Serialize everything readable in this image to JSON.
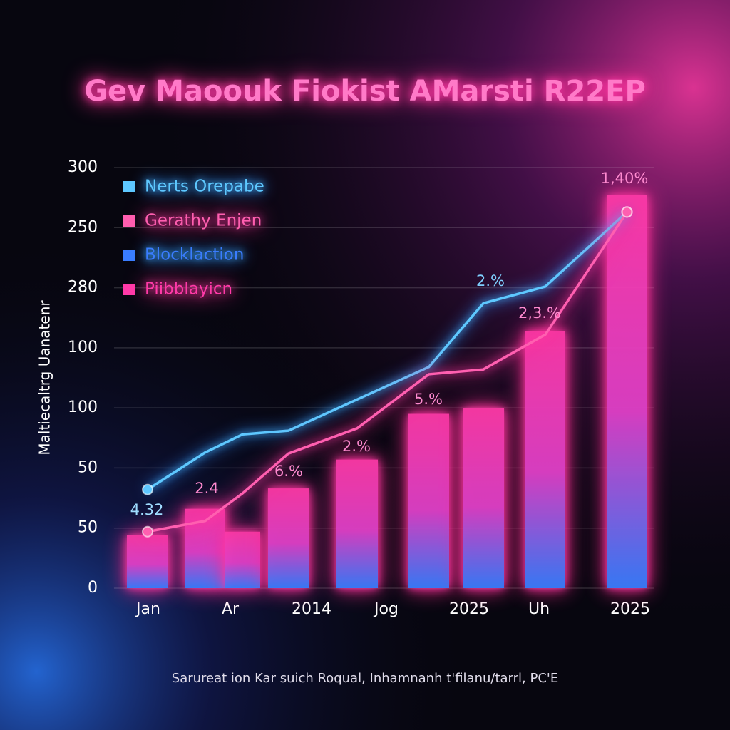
{
  "chart_data": {
    "type": "bar",
    "title": "Gev Maoouk Fiokist AMarsti R22EP",
    "y_label": "Maltiecaltrg Uanatenr",
    "footer": "Sarureat ion Kar suich Roqual, Inhamnanh t'filanu/tarrl, PC'E",
    "categories": [
      "Jan",
      "Ar",
      null,
      "2014",
      "Jog",
      "2025",
      null,
      "Uh",
      "2025"
    ],
    "series": [
      {
        "name": "Nerts Orepabe",
        "type": "line",
        "color": "#5ec8ff",
        "values": [
          82,
          113,
          128,
          131,
          157,
          184,
          237,
          251,
          313
        ]
      },
      {
        "name": "Gerathy Enjen",
        "type": "line",
        "color": "#ff5fb0",
        "values": [
          47,
          56,
          79,
          112,
          133,
          178,
          182,
          211,
          313
        ]
      },
      {
        "name": "Blocklaction",
        "type": "bar",
        "color": "#3a7dff",
        "values": [
          44,
          66,
          47,
          83,
          107,
          145,
          150,
          214,
          327
        ]
      },
      {
        "name": "Piibblayicn",
        "color": "#ff3aa8"
      }
    ],
    "annotations": [
      "4.32",
      "2.4",
      "6.%",
      "2.%",
      "5.%",
      "2.%",
      "2,3.%",
      "1,40%"
    ],
    "ylim": [
      0,
      350
    ],
    "yticks": [
      0,
      50,
      {
        "value": 100,
        "label": "50"
      },
      {
        "value": 150,
        "label": "100"
      },
      {
        "value": 200,
        "label": "100"
      },
      {
        "value": 250,
        "label": "280"
      },
      {
        "value": 300,
        "label": "250"
      },
      {
        "value": 350,
        "label": "300"
      }
    ],
    "grid": true
  }
}
